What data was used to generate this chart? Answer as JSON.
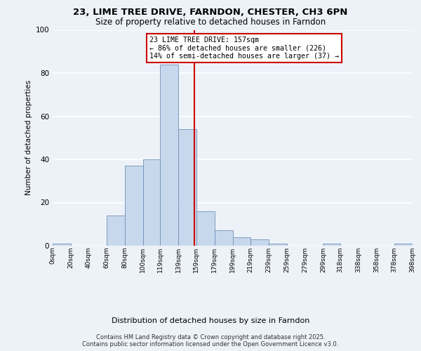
{
  "title": "23, LIME TREE DRIVE, FARNDON, CHESTER, CH3 6PN",
  "subtitle": "Size of property relative to detached houses in Farndon",
  "xlabel": "Distribution of detached houses by size in Farndon",
  "ylabel": "Number of detached properties",
  "bin_edges": [
    0,
    20,
    40,
    60,
    80,
    100,
    119,
    139,
    159,
    179,
    199,
    219,
    239,
    259,
    279,
    299,
    318,
    338,
    358,
    378,
    398
  ],
  "bar_heights": [
    1,
    0,
    0,
    14,
    37,
    40,
    84,
    54,
    16,
    7,
    4,
    3,
    1,
    0,
    0,
    1,
    0,
    0,
    0,
    1
  ],
  "bar_color": "#c8d8ec",
  "bar_edge_color": "#7090b8",
  "property_size": 157,
  "vline_color": "#cc0000",
  "annotation_line1": "23 LIME TREE DRIVE: 157sqm",
  "annotation_line2": "← 86% of detached houses are smaller (226)",
  "annotation_line3": "14% of semi-detached houses are larger (37) →",
  "annotation_box_color": "#ffffff",
  "annotation_box_edge_color": "#cc0000",
  "ylim": [
    0,
    100
  ],
  "yticks": [
    0,
    20,
    40,
    60,
    80,
    100
  ],
  "background_color": "#edf2f8",
  "grid_color": "#ffffff",
  "footer_line1": "Contains HM Land Registry data © Crown copyright and database right 2025.",
  "footer_line2": "Contains public sector information licensed under the Open Government Licence v3.0."
}
